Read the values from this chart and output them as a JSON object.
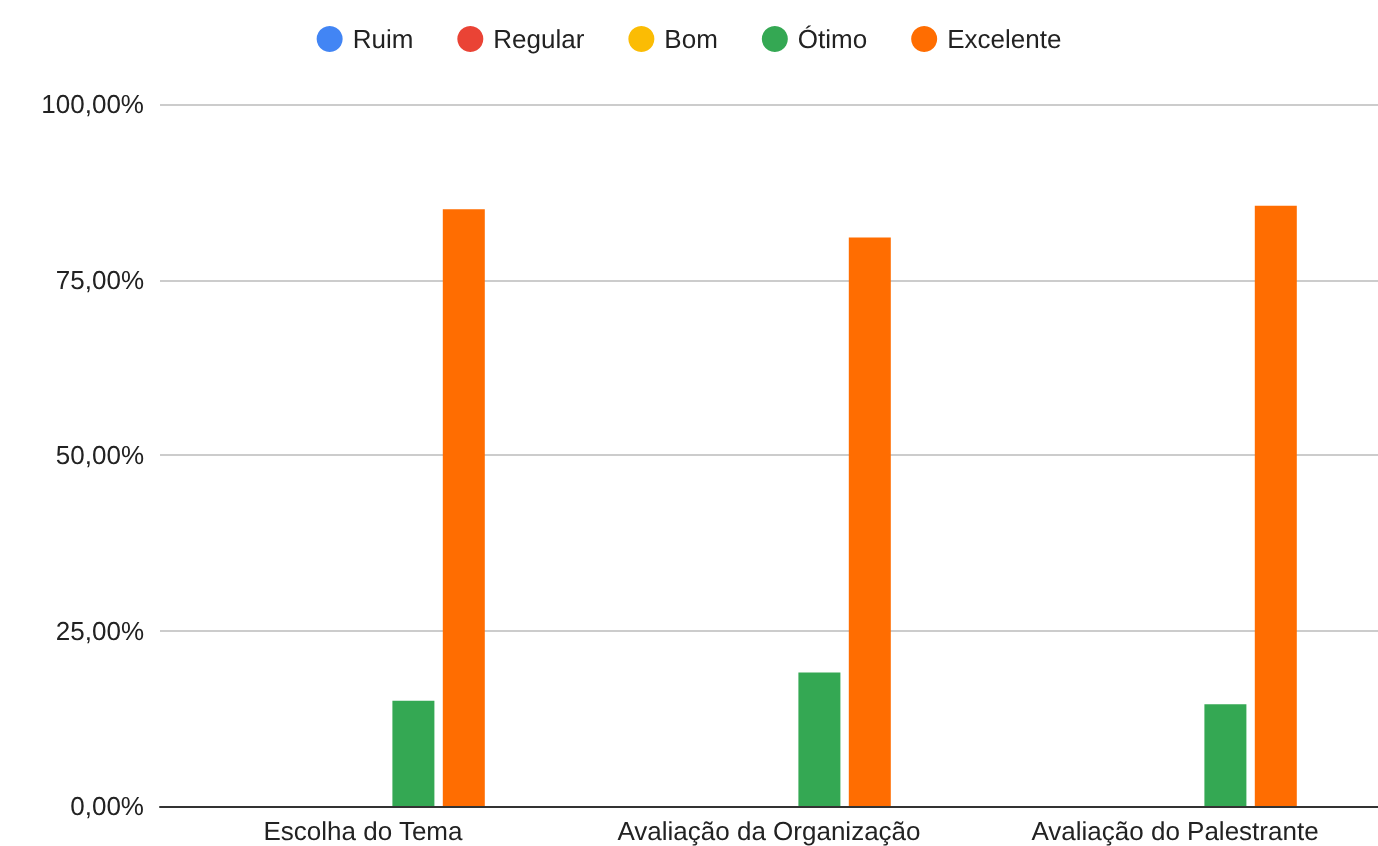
{
  "chart_data": {
    "type": "bar",
    "categories": [
      "Escolha do Tema",
      "Avaliação da Organização",
      "Avaliação do Palestrante"
    ],
    "series": [
      {
        "name": "Ruim",
        "color": "#4285f4",
        "values": [
          0,
          0,
          0
        ]
      },
      {
        "name": "Regular",
        "color": "#ea4335",
        "values": [
          0,
          0,
          0
        ]
      },
      {
        "name": "Bom",
        "color": "#fbbc04",
        "values": [
          0,
          0,
          0
        ]
      },
      {
        "name": "Ótimo",
        "color": "#34a853",
        "values": [
          15,
          19,
          14.5
        ]
      },
      {
        "name": "Excelente",
        "color": "#ff6d01",
        "values": [
          85,
          81,
          85.5
        ]
      }
    ],
    "ylim": [
      0,
      100
    ],
    "yticks": [
      {
        "value": 0,
        "label": "0,00%"
      },
      {
        "value": 25,
        "label": "25,00%"
      },
      {
        "value": 50,
        "label": "50,00%"
      },
      {
        "value": 75,
        "label": "75,00%"
      },
      {
        "value": 100,
        "label": "100,00%"
      }
    ],
    "grid": "y",
    "legend": "top"
  }
}
